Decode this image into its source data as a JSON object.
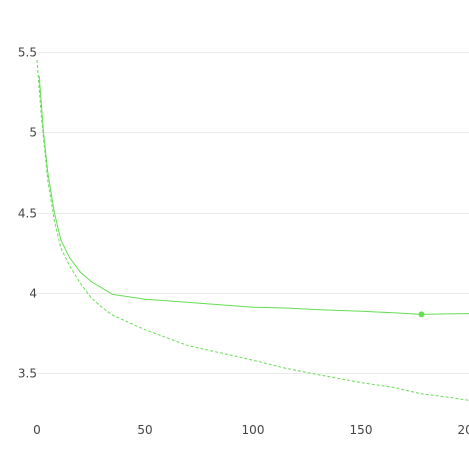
{
  "chart_data": {
    "type": "line",
    "title": "",
    "xlabel": "",
    "ylabel": "",
    "xlim": [
      0,
      200
    ],
    "ylim": [
      3.25,
      5.5
    ],
    "x_ticks": [
      0,
      50,
      100,
      150,
      200
    ],
    "x_tick_labels": [
      "0",
      "50",
      "100",
      "150",
      "200"
    ],
    "y_ticks": [
      3.5,
      4,
      4.5,
      5,
      5.5
    ],
    "y_tick_labels": [
      "3.5",
      "4",
      "4.5",
      "5",
      "5.5"
    ],
    "grid": "horizontal",
    "legend": "none",
    "series": [
      {
        "style": "solid",
        "color": "#66dd55",
        "x": [
          1,
          3,
          5,
          8,
          11,
          15,
          20,
          25,
          30,
          35,
          40,
          50,
          60,
          70,
          80,
          90,
          100,
          115,
          130,
          150,
          165,
          178,
          190,
          200
        ],
        "y": [
          5.35,
          5.0,
          4.75,
          4.5,
          4.33,
          4.22,
          4.13,
          4.07,
          4.03,
          3.99,
          3.98,
          3.96,
          3.95,
          3.94,
          3.93,
          3.92,
          3.91,
          3.905,
          3.895,
          3.885,
          3.875,
          3.865,
          3.868,
          3.87
        ],
        "markers": [
          {
            "x": 178,
            "y": 3.865
          }
        ]
      },
      {
        "style": "dashed",
        "color": "#66dd55",
        "x": [
          0,
          2,
          5,
          8,
          11,
          15,
          20,
          25,
          30,
          35,
          40,
          50,
          60,
          70,
          80,
          90,
          100,
          115,
          130,
          150,
          165,
          178,
          190,
          200
        ],
        "y": [
          5.45,
          5.1,
          4.7,
          4.45,
          4.28,
          4.17,
          4.06,
          3.97,
          3.91,
          3.86,
          3.83,
          3.77,
          3.72,
          3.67,
          3.64,
          3.61,
          3.58,
          3.53,
          3.49,
          3.44,
          3.41,
          3.37,
          3.35,
          3.33
        ]
      }
    ]
  }
}
